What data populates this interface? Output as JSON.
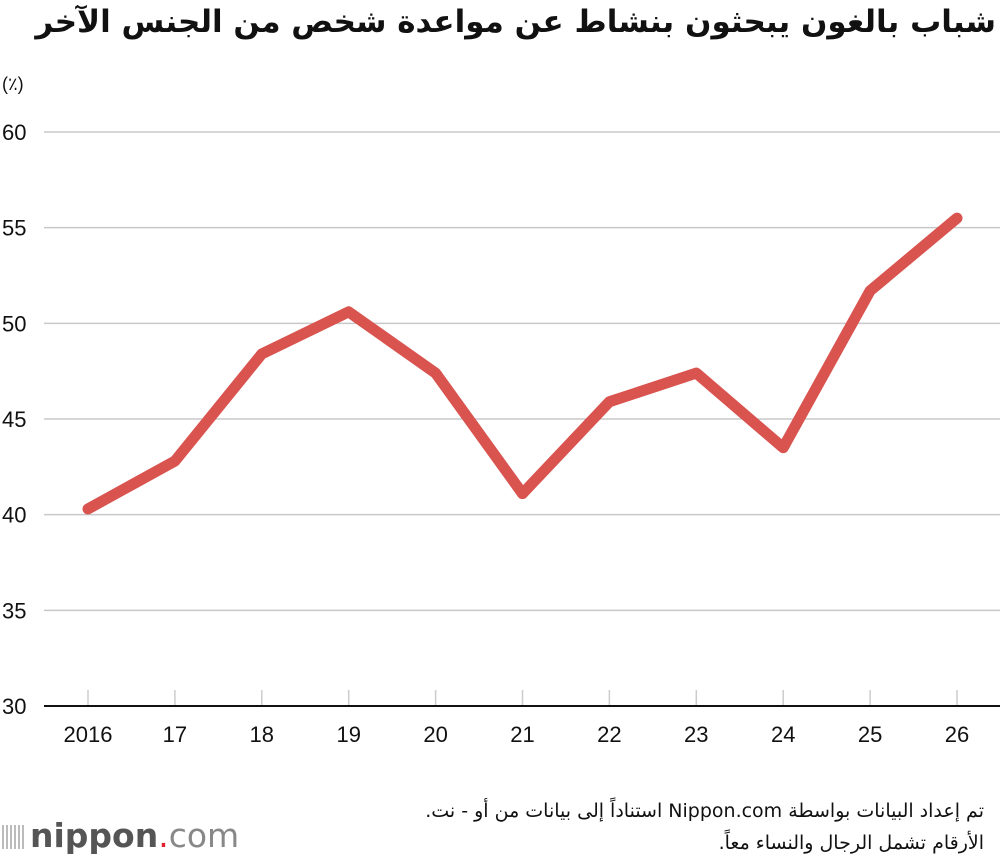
{
  "chart_data": {
    "type": "line",
    "title": "شباب بالغون يبحثون بنشاط عن مواعدة شخص من الجنس الآخر",
    "ylabel": "(٪)",
    "xlabel": "",
    "categories": [
      "2016",
      "17",
      "18",
      "19",
      "20",
      "21",
      "22",
      "23",
      "24",
      "25",
      "26"
    ],
    "values": [
      40.3,
      42.8,
      48.4,
      50.6,
      47.4,
      41.1,
      45.9,
      47.4,
      43.5,
      51.7,
      55.5
    ],
    "ylim": [
      30,
      60
    ],
    "yticks": [
      30,
      35,
      40,
      45,
      50,
      55,
      60
    ],
    "grid": true,
    "line_color": "#d9534f"
  },
  "footer": {
    "note": "تم إعداد البيانات بواسطة Nippon.com استناداً إلى بيانات من أو - نت. الأرقام تشمل الرجال والنساء معاً.",
    "logo_text": "nippon.com"
  }
}
